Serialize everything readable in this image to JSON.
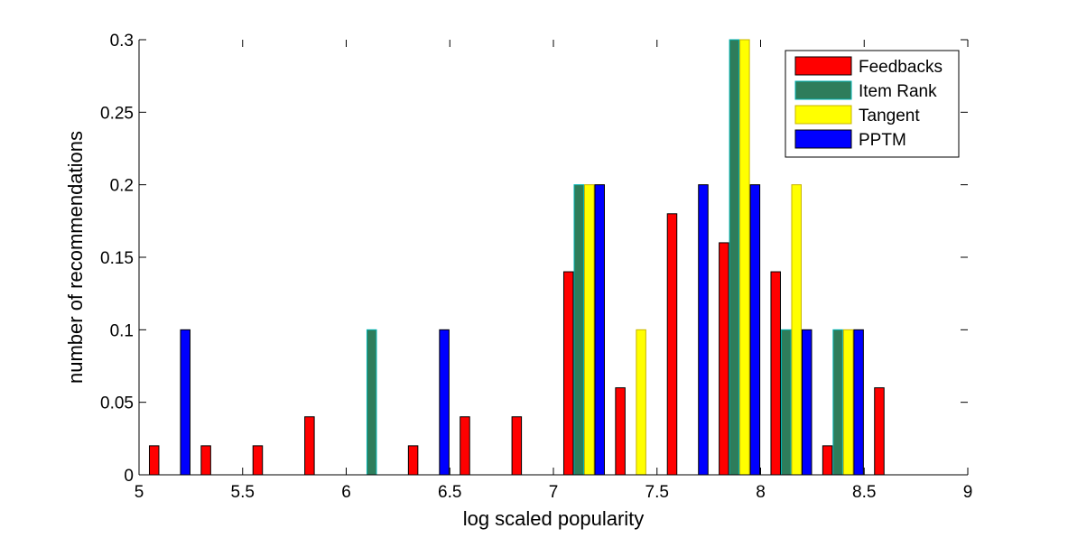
{
  "chart_data": {
    "type": "bar",
    "xlabel": "log scaled popularity",
    "ylabel": "number of recommendations",
    "xlim": [
      5,
      9
    ],
    "ylim": [
      0,
      0.3
    ],
    "x_ticks": [
      "5",
      "5.5",
      "6",
      "6.5",
      "7",
      "7.5",
      "8",
      "8.5",
      "9"
    ],
    "y_ticks": [
      "0",
      "0.05",
      "0.1",
      "0.15",
      "0.2",
      "0.25",
      "0.3"
    ],
    "x": [
      5.05,
      5.3,
      5.55,
      5.8,
      6.05,
      6.3,
      6.55,
      6.8,
      7.05,
      7.3,
      7.55,
      7.8,
      8.05,
      8.3,
      8.55,
      8.8
    ],
    "series": [
      {
        "name": "Feedbacks",
        "color": "#ff0000",
        "edge": "#000000",
        "values": [
          0.02,
          0.02,
          0.02,
          0.04,
          0,
          0.02,
          0.04,
          0.04,
          0.14,
          0.06,
          0.18,
          0.16,
          0.14,
          0.02,
          0.06,
          0
        ]
      },
      {
        "name": "Item Rank",
        "color": "#2e7d5b",
        "edge": "#00b3b3",
        "values": [
          0,
          0,
          0,
          0,
          0.1,
          0,
          0,
          0,
          0.2,
          0,
          0,
          0.3,
          0.1,
          0.1,
          0,
          0
        ]
      },
      {
        "name": "Tangent",
        "color": "#ffff00",
        "edge": "#c8b400",
        "values": [
          0,
          0,
          0,
          0,
          0,
          0,
          0,
          0,
          0.2,
          0.1,
          0,
          0.3,
          0.2,
          0.1,
          0,
          0
        ]
      },
      {
        "name": "PPTM",
        "color": "#0000ff",
        "edge": "#000000",
        "values": [
          0.1,
          0,
          0,
          0,
          0,
          0.1,
          0,
          0,
          0.2,
          0,
          0.2,
          0.2,
          0.1,
          0.1,
          0,
          0
        ]
      }
    ],
    "legend_position": "top-right",
    "grid": false
  }
}
